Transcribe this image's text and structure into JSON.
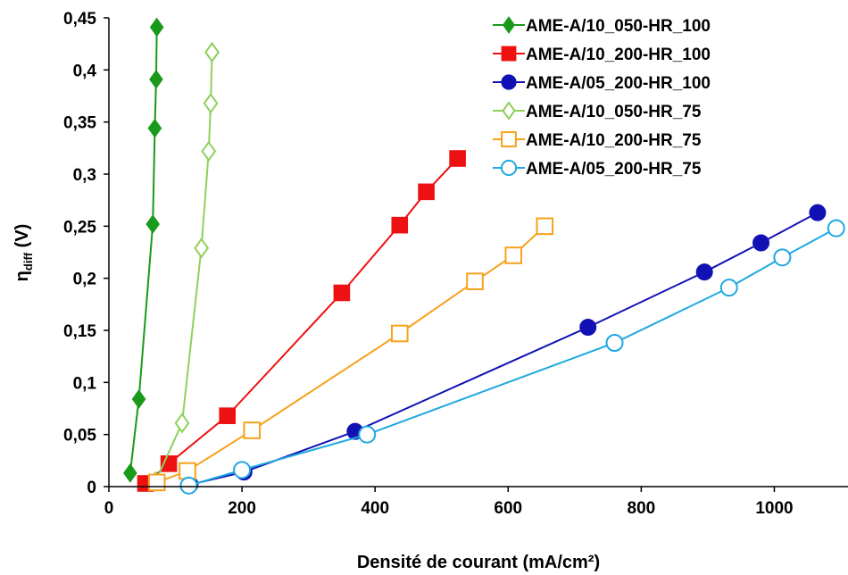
{
  "chart_data": {
    "type": "line",
    "xlabel": "Densité de courant (mA/cm²)",
    "ylabel": "η",
    "ylabel_sub": "diff",
    "ylabel_unit": " (V)",
    "xlim": [
      0,
      1100
    ],
    "ylim": [
      0,
      0.45
    ],
    "x_ticks": [
      0,
      200,
      400,
      600,
      800,
      1000
    ],
    "y_ticks": [
      0,
      0.05,
      0.1,
      0.15,
      0.2,
      0.25,
      0.3,
      0.35,
      0.4,
      0.45
    ],
    "x_tick_labels": [
      "0",
      "200",
      "400",
      "600",
      "800",
      "1000"
    ],
    "y_tick_labels": [
      "0",
      "0,05",
      "0,1",
      "0,15",
      "0,2",
      "0,25",
      "0,3",
      "0,35",
      "0,4",
      "0,45"
    ],
    "grid": false,
    "legend": "top-right",
    "series": [
      {
        "name": "AME-A/10_050-HR_100",
        "color": "#1a9a1a",
        "marker": "diamond",
        "filled": true,
        "x": [
          32,
          45,
          66,
          69,
          71,
          72
        ],
        "y": [
          0.013,
          0.084,
          0.252,
          0.344,
          0.391,
          0.441
        ]
      },
      {
        "name": "AME-A/10_200-HR_100",
        "color": "#ee1111",
        "marker": "square",
        "filled": true,
        "x": [
          55,
          90,
          178,
          350,
          437,
          477,
          524
        ],
        "y": [
          0.003,
          0.022,
          0.068,
          0.186,
          0.251,
          0.283,
          0.315
        ]
      },
      {
        "name": "AME-A/05_200-HR_100",
        "color": "#1212b4",
        "marker": "circle",
        "filled": true,
        "x": [
          122,
          203,
          370,
          720,
          895,
          980,
          1065
        ],
        "y": [
          0.002,
          0.014,
          0.053,
          0.153,
          0.206,
          0.234,
          0.263
        ]
      },
      {
        "name": "AME-A/10_050-HR_75",
        "color": "#8fd05a",
        "marker": "diamond",
        "filled": false,
        "x": [
          70,
          110,
          139,
          150,
          153,
          155
        ],
        "y": [
          0.005,
          0.061,
          0.229,
          0.322,
          0.368,
          0.417
        ]
      },
      {
        "name": "AME-A/10_200-HR_75",
        "color": "#f5a21c",
        "marker": "square",
        "filled": false,
        "x": [
          72,
          118,
          215,
          437,
          550,
          608,
          655
        ],
        "y": [
          0.004,
          0.015,
          0.054,
          0.147,
          0.197,
          0.222,
          0.25
        ]
      },
      {
        "name": "AME-A/05_200-HR_75",
        "color": "#1fa8e0",
        "marker": "circle",
        "filled": false,
        "x": [
          120,
          200,
          388,
          760,
          932,
          1012,
          1093
        ],
        "y": [
          0.001,
          0.016,
          0.05,
          0.138,
          0.191,
          0.22,
          0.248
        ]
      }
    ]
  }
}
